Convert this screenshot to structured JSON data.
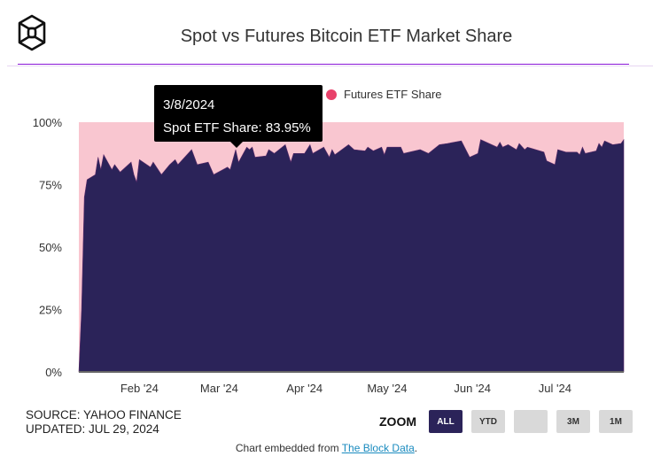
{
  "title": "Spot vs Futures Bitcoin ETF Market Share",
  "legend": [
    {
      "label": "Futures ETF Share",
      "color": "#e8416a"
    }
  ],
  "tooltip": {
    "date": "3/8/2024",
    "text": "Spot ETF Share: 83.95%"
  },
  "source": "SOURCE: YAHOO FINANCE",
  "updated": "UPDATED: JUL 29, 2024",
  "zoom": {
    "label": "ZOOM",
    "buttons": [
      "ALL",
      "YTD",
      "",
      "3M",
      "1M"
    ],
    "active": "ALL"
  },
  "embed": {
    "prefix": "Chart embedded from ",
    "link": "The Block Data",
    "suffix": "."
  },
  "colors": {
    "spot": "#2b2359",
    "futures": "#f9c6d0",
    "rule": "#8a16d8"
  },
  "chart_data": {
    "type": "area",
    "stacked": true,
    "percent": true,
    "ylim": [
      0,
      100
    ],
    "yticks": [
      "0%",
      "25%",
      "50%",
      "75%",
      "100%"
    ],
    "ytick_values": [
      0,
      25,
      50,
      75,
      100
    ],
    "xlim": [
      "2024-01-10",
      "2024-07-26"
    ],
    "xticks": [
      {
        "date": "2024-02-01",
        "label": "Feb '24"
      },
      {
        "date": "2024-03-01",
        "label": "Mar '24"
      },
      {
        "date": "2024-04-01",
        "label": "Apr '24"
      },
      {
        "date": "2024-05-01",
        "label": "May '24"
      },
      {
        "date": "2024-06-01",
        "label": "Jun '24"
      },
      {
        "date": "2024-07-01",
        "label": "Jul '24"
      }
    ],
    "series": [
      {
        "name": "Spot ETF Share",
        "color": "#2b2359",
        "points": [
          [
            "2024-01-10",
            0
          ],
          [
            "2024-01-11",
            25
          ],
          [
            "2024-01-12",
            70
          ],
          [
            "2024-01-13",
            77
          ],
          [
            "2024-01-16",
            79
          ],
          [
            "2024-01-17",
            86
          ],
          [
            "2024-01-18",
            81
          ],
          [
            "2024-01-19",
            87
          ],
          [
            "2024-01-22",
            81
          ],
          [
            "2024-01-23",
            83
          ],
          [
            "2024-01-25",
            80
          ],
          [
            "2024-01-29",
            84
          ],
          [
            "2024-01-30",
            79
          ],
          [
            "2024-01-31",
            76
          ],
          [
            "2024-02-01",
            85
          ],
          [
            "2024-02-05",
            82
          ],
          [
            "2024-02-06",
            84
          ],
          [
            "2024-02-09",
            79
          ],
          [
            "2024-02-12",
            83
          ],
          [
            "2024-02-14",
            85
          ],
          [
            "2024-02-15",
            83
          ],
          [
            "2024-02-20",
            89
          ],
          [
            "2024-02-22",
            83
          ],
          [
            "2024-02-26",
            84
          ],
          [
            "2024-02-28",
            79
          ],
          [
            "2024-03-04",
            82
          ],
          [
            "2024-03-05",
            81
          ],
          [
            "2024-03-07",
            89
          ],
          [
            "2024-03-08",
            83.95
          ],
          [
            "2024-03-11",
            90
          ],
          [
            "2024-03-12",
            89
          ],
          [
            "2024-03-13",
            90
          ],
          [
            "2024-03-14",
            86
          ],
          [
            "2024-03-18",
            86.5
          ],
          [
            "2024-03-19",
            89
          ],
          [
            "2024-03-21",
            87.5
          ],
          [
            "2024-03-25",
            91
          ],
          [
            "2024-03-27",
            84
          ],
          [
            "2024-03-28",
            87.5
          ],
          [
            "2024-04-01",
            87.5
          ],
          [
            "2024-04-03",
            91
          ],
          [
            "2024-04-04",
            87.5
          ],
          [
            "2024-04-08",
            90
          ],
          [
            "2024-04-10",
            86
          ],
          [
            "2024-04-11",
            89
          ],
          [
            "2024-04-12",
            87
          ],
          [
            "2024-04-17",
            91
          ],
          [
            "2024-04-19",
            89
          ],
          [
            "2024-04-23",
            88.5
          ],
          [
            "2024-04-24",
            90
          ],
          [
            "2024-04-26",
            88.5
          ],
          [
            "2024-04-29",
            90
          ],
          [
            "2024-04-30",
            87
          ],
          [
            "2024-05-01",
            90
          ],
          [
            "2024-05-06",
            90
          ],
          [
            "2024-05-07",
            87.5
          ],
          [
            "2024-05-13",
            89
          ],
          [
            "2024-05-16",
            87.5
          ],
          [
            "2024-05-20",
            91
          ],
          [
            "2024-05-23",
            91.5
          ],
          [
            "2024-05-28",
            92.5
          ],
          [
            "2024-05-31",
            86
          ],
          [
            "2024-06-03",
            87.5
          ],
          [
            "2024-06-04",
            93
          ],
          [
            "2024-06-10",
            90
          ],
          [
            "2024-06-11",
            92
          ],
          [
            "2024-06-12",
            90
          ],
          [
            "2024-06-14",
            91
          ],
          [
            "2024-06-17",
            89
          ],
          [
            "2024-06-18",
            91.5
          ],
          [
            "2024-06-20",
            89
          ],
          [
            "2024-06-21",
            90
          ],
          [
            "2024-06-27",
            88
          ],
          [
            "2024-06-28",
            84.5
          ],
          [
            "2024-07-01",
            83
          ],
          [
            "2024-07-02",
            89
          ],
          [
            "2024-07-05",
            88
          ],
          [
            "2024-07-09",
            88
          ],
          [
            "2024-07-10",
            87
          ],
          [
            "2024-07-11",
            90
          ],
          [
            "2024-07-12",
            87.5
          ],
          [
            "2024-07-16",
            88.5
          ],
          [
            "2024-07-17",
            91.5
          ],
          [
            "2024-07-18",
            90
          ],
          [
            "2024-07-19",
            92.5
          ],
          [
            "2024-07-22",
            91
          ],
          [
            "2024-07-25",
            91.5
          ],
          [
            "2024-07-26",
            93
          ]
        ]
      },
      {
        "name": "Futures ETF Share",
        "color": "#f9c6d0",
        "complement_of": "Spot ETF Share"
      }
    ]
  }
}
